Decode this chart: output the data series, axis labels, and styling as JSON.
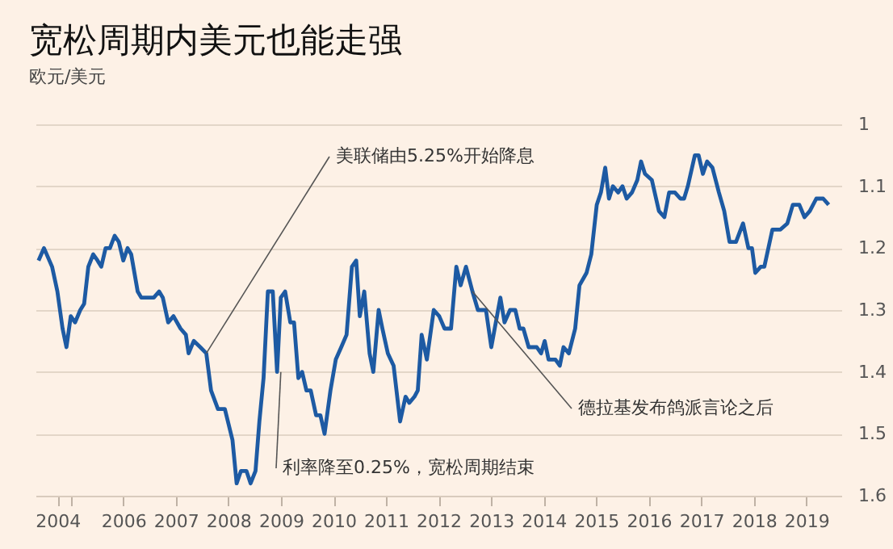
{
  "chart_data": {
    "type": "line",
    "title": "宽松周期内美元也能走强",
    "subtitle": "欧元/美元",
    "x": [
      "2004-05-22",
      "2004-06-29",
      "2004-08-24",
      "2004-09-30",
      "2004-11-05",
      "2004-12-02",
      "2005-01-01",
      "2005-01-31",
      "2005-03-08",
      "2005-04-04",
      "2005-05-03",
      "2005-06-06",
      "2005-07-06",
      "2005-08-01",
      "2005-08-31",
      "2005-09-30",
      "2005-11-02",
      "2005-12-01",
      "2006-01-01",
      "2006-01-31",
      "2006-02-25",
      "2006-04-11",
      "2006-05-06",
      "2006-08-01",
      "2006-09-07",
      "2006-10-03",
      "2006-11-09",
      "2006-12-16",
      "2007-02-03",
      "2007-03-12",
      "2007-03-31",
      "2007-05-06",
      "2007-06-20",
      "2007-08-01",
      "2007-09-03",
      "2007-10-21",
      "2007-12-08",
      "2008-01-30",
      "2008-02-28",
      "2008-03-29",
      "2008-05-06",
      "2008-06-04",
      "2008-07-08",
      "2008-08-04",
      "2008-09-02",
      "2008-10-02",
      "2008-11-05",
      "2008-12-05",
      "2008-12-31",
      "2009-01-30",
      "2009-03-07",
      "2009-04-02",
      "2009-05-02",
      "2009-05-28",
      "2009-06-27",
      "2009-07-27",
      "2009-09-02",
      "2009-10-02",
      "2009-10-31",
      "2009-12-11",
      "2010-01-17",
      "2010-02-24",
      "2010-04-02",
      "2010-05-09",
      "2010-06-08",
      "2010-07-03",
      "2010-08-03",
      "2010-09-09",
      "2010-10-05",
      "2010-11-11",
      "2010-12-07",
      "2011-01-14",
      "2011-02-23",
      "2011-04-09",
      "2011-05-17",
      "2011-06-12",
      "2011-07-18",
      "2011-08-10",
      "2011-09-06",
      "2011-10-12",
      "2011-11-29",
      "2012-01-06",
      "2012-02-12",
      "2012-03-28",
      "2012-05-04",
      "2012-06-03",
      "2012-07-10",
      "2012-08-24",
      "2012-10-01",
      "2012-11-26",
      "2013-01-02",
      "2013-03-06",
      "2013-04-04",
      "2013-05-12",
      "2013-06-18",
      "2013-07-18",
      "2013-08-13",
      "2013-09-19",
      "2013-11-14",
      "2013-12-14",
      "2014-01-08",
      "2014-02-04",
      "2014-03-24",
      "2014-04-23",
      "2014-05-19",
      "2014-06-25",
      "2014-08-08",
      "2014-09-07",
      "2014-10-26",
      "2014-11-28",
      "2015-01-05",
      "2015-02-03",
      "2015-03-05",
      "2015-03-31",
      "2015-04-27",
      "2015-06-03",
      "2015-07-03",
      "2015-08-01",
      "2015-09-07",
      "2015-10-14",
      "2015-11-09",
      "2015-12-06",
      "2016-01-23",
      "2016-03-12",
      "2016-04-19",
      "2016-05-22",
      "2016-07-01",
      "2016-08-08",
      "2016-09-03",
      "2016-09-29",
      "2016-11-17",
      "2016-12-13",
      "2017-01-12",
      "2017-02-10",
      "2017-03-19",
      "2017-05-03",
      "2017-06-09",
      "2017-07-16",
      "2017-08-30",
      "2017-10-18",
      "2017-11-24",
      "2017-12-19",
      "2018-01-11",
      "2018-02-18",
      "2018-03-15",
      "2018-05-10",
      "2018-07-05",
      "2018-08-22",
      "2018-09-29",
      "2018-11-13",
      "2018-12-19",
      "2019-01-25",
      "2019-03-11",
      "2019-04-28",
      "2019-06-05"
    ],
    "series": [
      {
        "color": "#1d5aa3",
        "values": [
          1.22,
          1.2,
          1.23,
          1.27,
          1.33,
          1.36,
          1.31,
          1.32,
          1.3,
          1.29,
          1.23,
          1.21,
          1.22,
          1.23,
          1.2,
          1.2,
          1.18,
          1.19,
          1.22,
          1.2,
          1.21,
          1.27,
          1.28,
          1.28,
          1.27,
          1.28,
          1.32,
          1.31,
          1.33,
          1.34,
          1.37,
          1.35,
          1.36,
          1.37,
          1.43,
          1.46,
          1.46,
          1.51,
          1.58,
          1.56,
          1.56,
          1.58,
          1.56,
          1.48,
          1.41,
          1.27,
          1.27,
          1.4,
          1.28,
          1.27,
          1.32,
          1.32,
          1.41,
          1.4,
          1.43,
          1.43,
          1.47,
          1.47,
          1.5,
          1.43,
          1.38,
          1.36,
          1.34,
          1.23,
          1.22,
          1.31,
          1.27,
          1.37,
          1.4,
          1.3,
          1.33,
          1.37,
          1.39,
          1.48,
          1.44,
          1.45,
          1.44,
          1.43,
          1.34,
          1.38,
          1.3,
          1.31,
          1.33,
          1.33,
          1.23,
          1.26,
          1.23,
          1.27,
          1.3,
          1.3,
          1.36,
          1.28,
          1.32,
          1.3,
          1.3,
          1.33,
          1.33,
          1.36,
          1.36,
          1.37,
          1.35,
          1.38,
          1.38,
          1.39,
          1.36,
          1.37,
          1.33,
          1.26,
          1.24,
          1.21,
          1.13,
          1.11,
          1.07,
          1.12,
          1.1,
          1.11,
          1.1,
          1.12,
          1.11,
          1.09,
          1.06,
          1.08,
          1.09,
          1.14,
          1.15,
          1.11,
          1.11,
          1.12,
          1.12,
          1.1,
          1.05,
          1.05,
          1.08,
          1.06,
          1.07,
          1.11,
          1.14,
          1.19,
          1.19,
          1.16,
          1.2,
          1.2,
          1.24,
          1.23,
          1.23,
          1.17,
          1.17,
          1.16,
          1.13,
          1.13,
          1.15,
          1.14,
          1.12,
          1.12,
          1.13
        ]
      }
    ],
    "xlim": [
      "2004-05",
      "2019-09"
    ],
    "xticks": [
      {
        "value": "2004-10",
        "label": "2004"
      },
      {
        "value": "2005",
        "label": null
      },
      "2006",
      "2007",
      "2008",
      "2009",
      "2010",
      "2011",
      "2012",
      "2013",
      "2014",
      "2015",
      "2016",
      "2017",
      "2018",
      "2019"
    ],
    "ylim": [
      1.6,
      1
    ],
    "yticks": [
      1,
      1.1,
      1.2,
      1.3,
      1.4,
      1.5,
      1.6
    ],
    "grid": "y",
    "annotations": [
      {
        "text": "美联储由5.25%开始降息",
        "x": "2007-08-01",
        "y": 1.37
      },
      {
        "text": "利率降至0.25%，宽松周期结束",
        "x": "2008-12-31",
        "y": 1.4
      },
      {
        "text": "德拉基发布鸽派言论之后",
        "x": "2012-08-24",
        "y": 1.27
      }
    ]
  }
}
